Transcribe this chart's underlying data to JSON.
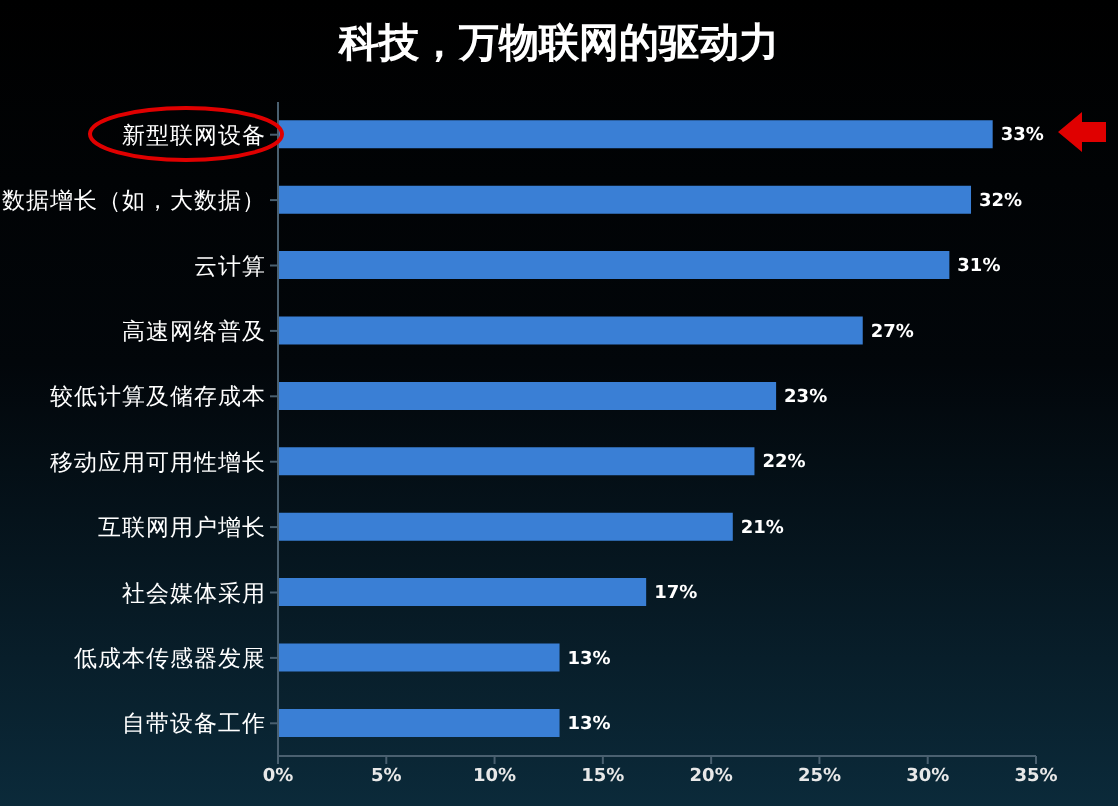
{
  "chart_data": {
    "type": "bar",
    "orientation": "horizontal",
    "title": "科技，万物联网的驱动力",
    "categories": [
      "新型联网设备",
      "数据增长（如，大数据）",
      "云计算",
      "高速网络普及",
      "较低计算及储存成本",
      "移动应用可用性增长",
      "互联网用户增长",
      "社会媒体采用",
      "低成本传感器发展",
      "自带设备工作"
    ],
    "values": [
      33,
      32,
      31,
      27,
      23,
      22,
      21,
      17,
      13,
      13
    ],
    "value_labels": [
      "33%",
      "32%",
      "31%",
      "27%",
      "23%",
      "22%",
      "21%",
      "17%",
      "13%",
      "13%"
    ],
    "color": "#3a7fd5",
    "xlim": [
      0,
      35
    ],
    "xticks": [
      {
        "value": 0,
        "label": "0%"
      },
      {
        "value": 5,
        "label": "5%"
      },
      {
        "value": 10,
        "label": "10%"
      },
      {
        "value": 15,
        "label": "15%"
      },
      {
        "value": 20,
        "label": "20%"
      },
      {
        "value": 25,
        "label": "25%"
      },
      {
        "value": 30,
        "label": "30%"
      },
      {
        "value": 35,
        "label": "35%"
      }
    ],
    "grid": false,
    "legend": false
  }
}
